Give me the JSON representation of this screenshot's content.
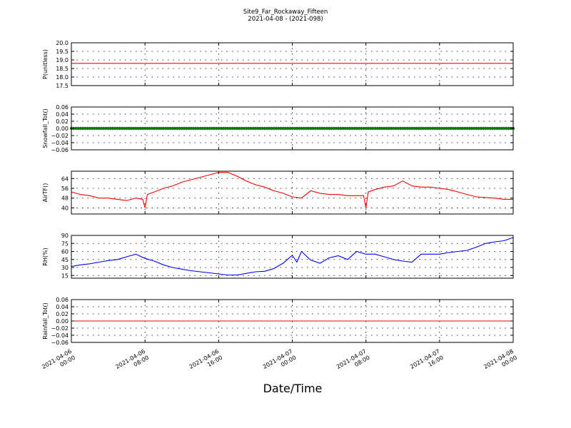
{
  "title": "Site9_Far_Rockaway_Fifteen",
  "subtitle": "2021-04-08 - (2021-098)",
  "xlabel": "Date/Time",
  "x_ticks": [
    {
      "value": "2021-04-06T00:00",
      "line1": "2021-04-06",
      "line2": "00:00"
    },
    {
      "value": "2021-04-06T08:00",
      "line1": "2021-04-06",
      "line2": "08:00"
    },
    {
      "value": "2021-04-06T16:00",
      "line1": "2021-04-06",
      "line2": "16:00"
    },
    {
      "value": "2021-04-07T00:00",
      "line1": "2021-04-07",
      "line2": "00:00"
    },
    {
      "value": "2021-04-07T08:00",
      "line1": "2021-04-07",
      "line2": "08:00"
    },
    {
      "value": "2021-04-07T16:00",
      "line1": "2021-04-07",
      "line2": "16:00"
    },
    {
      "value": "2021-04-08T00:00",
      "line1": "2021-04-08",
      "line2": "00:00"
    }
  ],
  "chart_data": [
    {
      "type": "line",
      "ylabel": "P(unitless)",
      "ylim": [
        17.5,
        20.0
      ],
      "yticks": [
        "17.5",
        "18.0",
        "18.5",
        "19.0",
        "19.5",
        "20.0"
      ],
      "xlim": [
        "2021-04-06T00:00",
        "2021-04-08T00:00"
      ],
      "grid": true,
      "series": [
        {
          "color": "#ff0000",
          "marker": false,
          "x": [
            "2021-04-06T00:00",
            "2021-04-08T00:00"
          ],
          "y": [
            18.8,
            18.8
          ]
        }
      ]
    },
    {
      "type": "line",
      "ylabel": "Snowfall_Tot()",
      "ylim": [
        -0.06,
        0.06
      ],
      "yticks": [
        "−0.06",
        "−0.04",
        "−0.02",
        "0.00",
        "0.02",
        "0.04",
        "0.06"
      ],
      "xlim": [
        "2021-04-06T00:00",
        "2021-04-08T00:00"
      ],
      "grid": true,
      "series": [
        {
          "color": "#007f00",
          "marker": true,
          "sampling": "every 15 minutes",
          "x": [
            "2021-04-06T00:00",
            "2021-04-08T00:00"
          ],
          "y": [
            0,
            0
          ]
        }
      ]
    },
    {
      "type": "line",
      "ylabel": "AirTF()",
      "ylim": [
        35,
        70
      ],
      "yticks": [
        "40",
        "48",
        "56",
        "64"
      ],
      "xlim": [
        "2021-04-06T00:00",
        "2021-04-08T00:00"
      ],
      "grid": true,
      "series": [
        {
          "color": "#ff0000",
          "marker": false,
          "x": [
            "2021-04-06T00:00",
            "2021-04-06T01:00",
            "2021-04-06T02:00",
            "2021-04-06T03:00",
            "2021-04-06T04:00",
            "2021-04-06T05:00",
            "2021-04-06T06:00",
            "2021-04-06T07:00",
            "2021-04-06T07:45",
            "2021-04-06T08:00",
            "2021-04-06T08:15",
            "2021-04-06T09:00",
            "2021-04-06T10:00",
            "2021-04-06T11:00",
            "2021-04-06T12:00",
            "2021-04-06T13:00",
            "2021-04-06T14:00",
            "2021-04-06T15:00",
            "2021-04-06T16:00",
            "2021-04-06T17:00",
            "2021-04-06T18:00",
            "2021-04-06T19:00",
            "2021-04-06T20:00",
            "2021-04-06T21:00",
            "2021-04-06T22:00",
            "2021-04-06T23:00",
            "2021-04-07T00:00",
            "2021-04-07T01:00",
            "2021-04-07T02:00",
            "2021-04-07T03:00",
            "2021-04-07T04:00",
            "2021-04-07T05:00",
            "2021-04-07T06:00",
            "2021-04-07T07:00",
            "2021-04-07T07:45",
            "2021-04-07T08:00",
            "2021-04-07T08:15",
            "2021-04-07T09:00",
            "2021-04-07T10:00",
            "2021-04-07T11:00",
            "2021-04-07T12:00",
            "2021-04-07T13:00",
            "2021-04-07T14:00",
            "2021-04-07T15:00",
            "2021-04-07T16:00",
            "2021-04-07T17:00",
            "2021-04-07T18:00",
            "2021-04-07T19:00",
            "2021-04-07T20:00",
            "2021-04-07T21:00",
            "2021-04-07T22:00",
            "2021-04-07T23:00",
            "2021-04-08T00:00"
          ],
          "y": [
            53,
            51,
            50,
            48,
            48,
            47,
            46,
            48,
            47,
            40,
            51,
            53,
            56,
            58,
            61,
            63,
            65,
            67,
            69,
            69,
            66,
            62,
            59,
            57,
            54,
            52,
            49,
            48,
            54,
            52,
            51,
            51,
            50,
            50,
            50,
            40,
            53,
            55,
            57,
            58,
            62,
            58,
            57,
            57,
            56,
            55,
            53,
            51,
            49,
            48.5,
            48,
            47,
            47
          ]
        }
      ]
    },
    {
      "type": "line",
      "ylabel": "RH(%)",
      "ylim": [
        10,
        90
      ],
      "yticks": [
        "15",
        "30",
        "45",
        "60",
        "75",
        "90"
      ],
      "xlim": [
        "2021-04-06T00:00",
        "2021-04-08T00:00"
      ],
      "grid": true,
      "series": [
        {
          "color": "#0000ff",
          "marker": false,
          "x": [
            "2021-04-06T00:00",
            "2021-04-06T01:00",
            "2021-04-06T02:00",
            "2021-04-06T03:00",
            "2021-04-06T04:00",
            "2021-04-06T05:00",
            "2021-04-06T06:00",
            "2021-04-06T07:00",
            "2021-04-06T08:00",
            "2021-04-06T09:00",
            "2021-04-06T10:00",
            "2021-04-06T11:00",
            "2021-04-06T12:00",
            "2021-04-06T13:00",
            "2021-04-06T14:00",
            "2021-04-06T15:00",
            "2021-04-06T16:00",
            "2021-04-06T17:00",
            "2021-04-06T18:00",
            "2021-04-06T19:00",
            "2021-04-06T20:00",
            "2021-04-06T21:00",
            "2021-04-06T22:00",
            "2021-04-06T23:00",
            "2021-04-07T00:00",
            "2021-04-07T00:30",
            "2021-04-07T01:00",
            "2021-04-07T02:00",
            "2021-04-07T03:00",
            "2021-04-07T04:00",
            "2021-04-07T05:00",
            "2021-04-07T06:00",
            "2021-04-07T07:00",
            "2021-04-07T08:00",
            "2021-04-07T09:00",
            "2021-04-07T10:00",
            "2021-04-07T11:00",
            "2021-04-07T12:00",
            "2021-04-07T13:00",
            "2021-04-07T14:00",
            "2021-04-07T15:00",
            "2021-04-07T16:00",
            "2021-04-07T17:00",
            "2021-04-07T18:00",
            "2021-04-07T19:00",
            "2021-04-07T20:00",
            "2021-04-07T21:00",
            "2021-04-07T22:00",
            "2021-04-07T23:00",
            "2021-04-08T00:00"
          ],
          "y": [
            32,
            35,
            37,
            40,
            43,
            45,
            50,
            55,
            47,
            42,
            35,
            30,
            27,
            24,
            22,
            20,
            18,
            16,
            16,
            19,
            22,
            23,
            28,
            38,
            53,
            40,
            60,
            44,
            38,
            48,
            52,
            45,
            60,
            55,
            55,
            50,
            45,
            42,
            40,
            55,
            55,
            55,
            58,
            60,
            62,
            68,
            75,
            78,
            80,
            86
          ]
        }
      ]
    },
    {
      "type": "line",
      "ylabel": "Rainfall_Tot()",
      "ylim": [
        -0.06,
        0.06
      ],
      "yticks": [
        "−0.06",
        "−0.04",
        "−0.02",
        "0.00",
        "0.02",
        "0.04",
        "0.06"
      ],
      "xlim": [
        "2021-04-06T00:00",
        "2021-04-08T00:00"
      ],
      "grid": true,
      "series": [
        {
          "color": "#ff0000",
          "marker": false,
          "x": [
            "2021-04-06T00:00",
            "2021-04-08T00:00"
          ],
          "y": [
            0,
            0
          ]
        }
      ]
    }
  ]
}
